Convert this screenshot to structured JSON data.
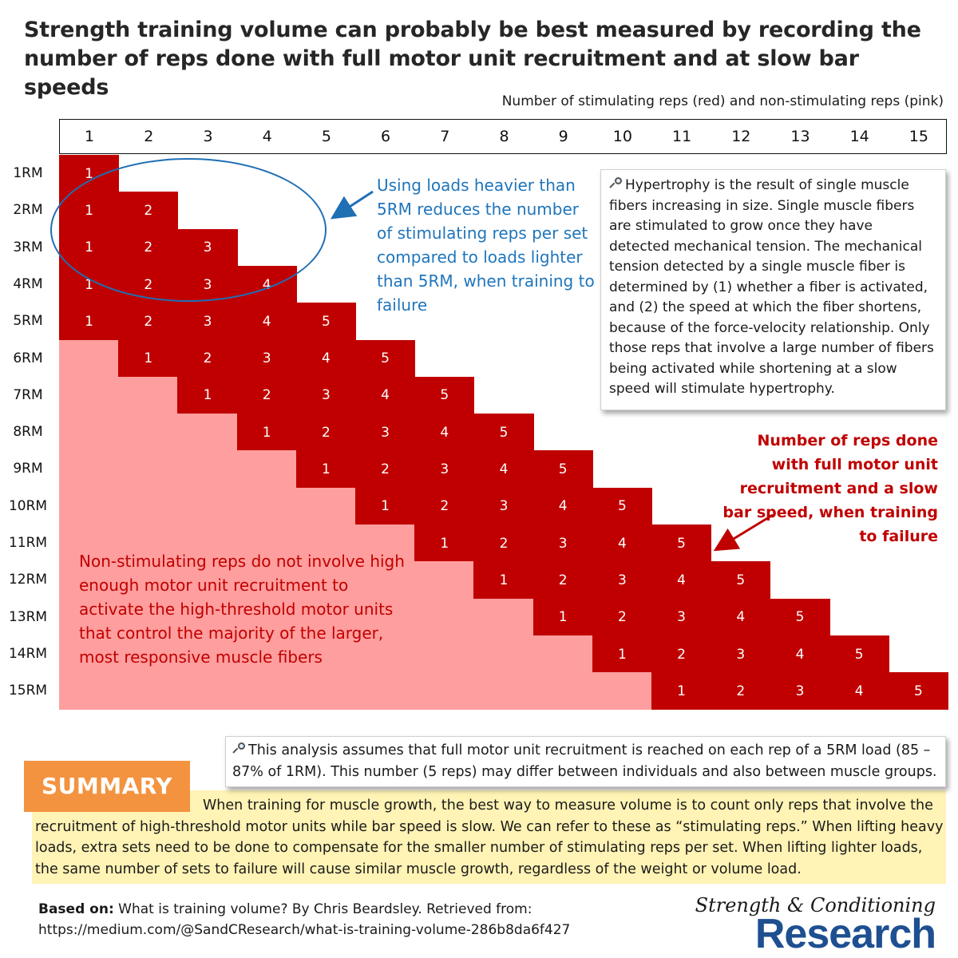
{
  "title": "Strength training volume can probably be best measured by recording the number of reps done with full motor unit recruitment and at slow bar speeds",
  "axis_caption": "Number of stimulating reps (red) and non-stimulating reps (pink)",
  "columns": [
    "1",
    "2",
    "3",
    "4",
    "5",
    "6",
    "7",
    "8",
    "9",
    "10",
    "11",
    "12",
    "13",
    "14",
    "15"
  ],
  "rows": [
    "1RM",
    "2RM",
    "3RM",
    "4RM",
    "5RM",
    "6RM",
    "7RM",
    "8RM",
    "9RM",
    "10RM",
    "11RM",
    "12RM",
    "13RM",
    "14RM",
    "15RM"
  ],
  "colors": {
    "stimulating": "#c00000",
    "non_stimulating": "#ff9e9e",
    "circle": "#1f6fb5",
    "summary_badge": "#f39340",
    "summary_band": "#fff3b5",
    "logo": "#1e4f91"
  },
  "notes": {
    "heavy_loads": "Using loads heavier than 5RM reduces the number of stimulating reps per set compared to loads lighter than 5RM, when training to failure",
    "hypertrophy": "Hypertrophy is the result of single muscle fibers increasing in size. Single muscle fibers are stimulated to grow once they have detected mechanical tension. The mechanical tension detected by a single muscle fiber is determined by (1) whether a fiber is activated, and (2) the speed at which the fiber shortens, because of the force-velocity relationship. Only those reps that involve a large number of fibers being activated while shortening at a slow speed will stimulate hypertrophy.",
    "stimulating": "Number of reps done with full motor unit recruitment and a slow bar speed, when training to failure",
    "non_stimulating": "Non-stimulating reps do not involve high enough motor unit recruitment to activate the high-threshold motor units that control the majority of the larger, most responsive muscle fibers",
    "assumption": "This analysis assumes that full motor unit recruitment is reached on each rep of a 5RM load (85 – 87% of 1RM). This number (5 reps) may differ between individuals and also between muscle groups."
  },
  "summary": {
    "label": "SUMMARY",
    "text": "When training for muscle growth, the best way to measure volume is to count only reps that involve the recruitment of high-threshold motor units while bar speed is slow. We can refer to these as “stimulating reps.” When lifting heavy loads, extra sets need to be done to compensate for the smaller number of stimulating reps per set. When lifting lighter loads, the same number of sets to failure will cause similar muscle growth, regardless of the weight or volume load."
  },
  "source": {
    "label": "Based on:",
    "text": "What is training volume? By Chris Beardsley. Retrieved from:",
    "url": "https://medium.com/@SandCResearch/what-is-training-volume-286b8da6f427"
  },
  "logo": {
    "script": "Strength & Conditioning",
    "word": "Research"
  },
  "icons": {
    "note_icon": "magnifier-icon"
  }
}
